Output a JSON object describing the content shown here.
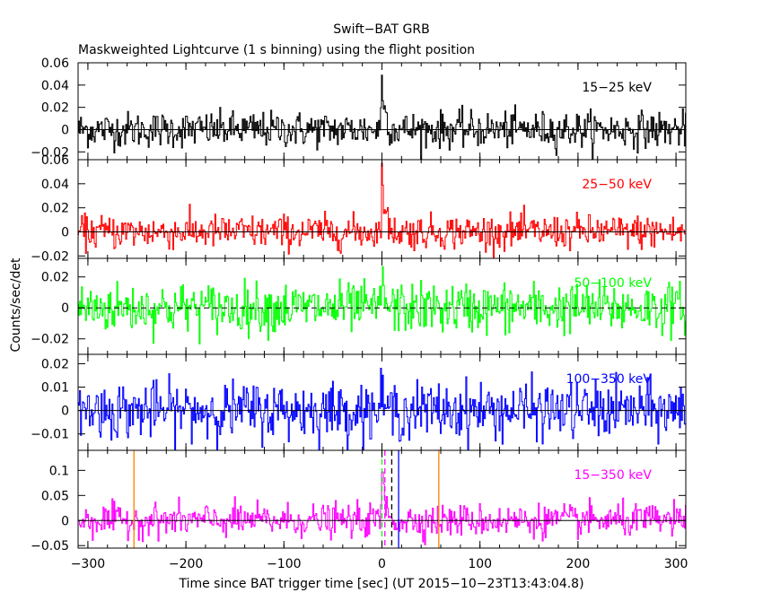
{
  "figure": {
    "title": "Swift−BAT GRB",
    "subtitle": "Maskweighted Lightcurve (1 s binning) using the flight position",
    "ylabel": "Counts/sec/det",
    "xlabel": "Time since BAT trigger time [sec] (UT 2015−10−23T13:43:04.8)"
  },
  "chart_data": [
    {
      "type": "line",
      "band": "15−25 keV",
      "color": "#000000",
      "xlim": [
        -310,
        310
      ],
      "ylim": [
        -0.027,
        0.06
      ],
      "yticks": [
        -0.02,
        0,
        0.02,
        0.04,
        0.06
      ],
      "yticklabels": [
        "−0.02",
        "0",
        "0.02",
        "0.04",
        "0.06"
      ],
      "noise_sigma": 0.008,
      "pulse": {
        "t_peak": 0,
        "peak": 0.05,
        "decay_s": 3
      },
      "zero_line": "solid"
    },
    {
      "type": "line",
      "band": "25−50 keV",
      "color": "#ff0000",
      "xlim": [
        -310,
        310
      ],
      "ylim": [
        -0.022,
        0.06
      ],
      "yticks": [
        -0.02,
        0,
        0.02,
        0.04,
        0.06
      ],
      "yticklabels": [
        "−0.02",
        "0",
        "0.02",
        "0.04",
        "0.06"
      ],
      "noise_sigma": 0.007,
      "pulse": {
        "t_peak": 0,
        "peak": 0.05,
        "decay_s": 3
      },
      "zero_line": "solid"
    },
    {
      "type": "line",
      "band": "50−100 keV",
      "color": "#00ff00",
      "xlim": [
        -310,
        310
      ],
      "ylim": [
        -0.03,
        0.032
      ],
      "yticks": [
        -0.02,
        0,
        0.02
      ],
      "yticklabels": [
        "−0.02",
        "0",
        "0.02"
      ],
      "noise_sigma": 0.008,
      "pulse": {
        "t_peak": 0,
        "peak": 0.024,
        "decay_s": 2
      },
      "zero_line": "dashed"
    },
    {
      "type": "line",
      "band": "100−350 keV",
      "color": "#0000ff",
      "xlim": [
        -310,
        310
      ],
      "ylim": [
        -0.017,
        0.024
      ],
      "yticks": [
        -0.01,
        0,
        0.01,
        0.02
      ],
      "yticklabels": [
        "−0.01",
        "0",
        "0.01",
        "0.02"
      ],
      "noise_sigma": 0.006,
      "pulse": {
        "t_peak": 0,
        "peak": 0.008,
        "decay_s": 2
      },
      "zero_line": "solid"
    },
    {
      "type": "line",
      "band": "15−350 keV",
      "color": "#ff00ff",
      "xlim": [
        -310,
        310
      ],
      "ylim": [
        -0.055,
        0.14
      ],
      "yticks": [
        -0.05,
        0,
        0.05,
        0.1
      ],
      "yticklabels": [
        "−0.05",
        "0",
        "0.05",
        "0.1"
      ],
      "noise_sigma": 0.016,
      "pulse": {
        "t_peak": 0,
        "peak": 0.11,
        "decay_s": 3
      },
      "zero_line": "solid",
      "markers": [
        {
          "t": -253,
          "color": "#ff8000",
          "style": "solid"
        },
        {
          "t": 58,
          "color": "#ff8000",
          "style": "solid"
        },
        {
          "t": 0,
          "color": "#00ff00",
          "style": "dashed"
        },
        {
          "t": 3,
          "color": "#ff00ff",
          "style": "dashed"
        },
        {
          "t": 10,
          "color": "#000000",
          "style": "dashed"
        },
        {
          "t": 17,
          "color": "#0000ff",
          "style": "solid"
        }
      ]
    }
  ],
  "xaxis": {
    "ticks": [
      -300,
      -200,
      -100,
      0,
      100,
      200,
      300
    ],
    "ticklabels": [
      "−300",
      "−200",
      "−100",
      "0",
      "100",
      "200",
      "300"
    ]
  }
}
